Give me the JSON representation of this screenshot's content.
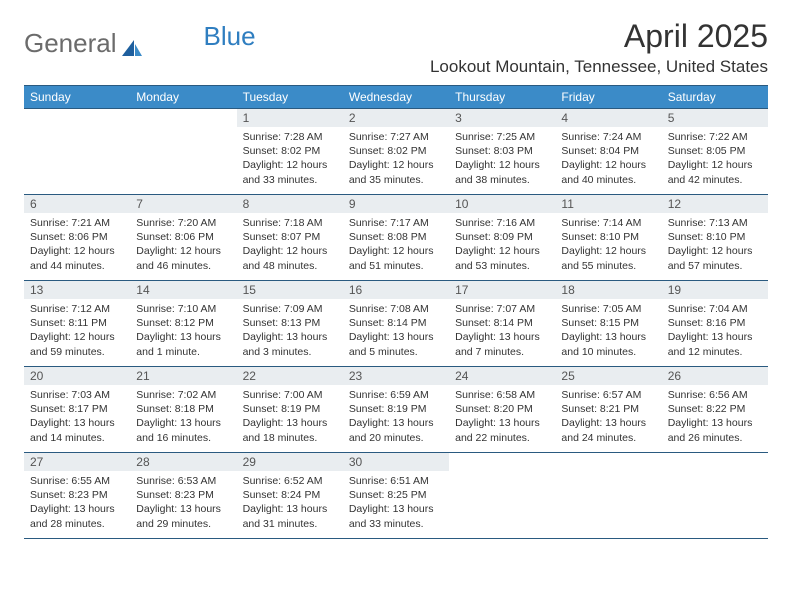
{
  "brand": {
    "part1": "General",
    "part2": "Blue"
  },
  "title": "April 2025",
  "location": "Lookout Mountain, Tennessee, United States",
  "style": {
    "header_bg": "#3b8bc8",
    "header_text": "#ffffff",
    "border_color": "#2a5a80",
    "daynum_bg": "#e9edf0",
    "body_bg": "#ffffff",
    "text_color": "#333333",
    "logo_gray": "#6b6b6b",
    "logo_blue": "#2f7ec0",
    "month_fontsize": 32,
    "location_fontsize": 17,
    "th_fontsize": 12,
    "cell_fontsize": 10.5
  },
  "weekdays": [
    "Sunday",
    "Monday",
    "Tuesday",
    "Wednesday",
    "Thursday",
    "Friday",
    "Saturday"
  ],
  "weeks": [
    [
      null,
      null,
      {
        "n": "1",
        "sr": "7:28 AM",
        "ss": "8:02 PM",
        "dl": "12 hours and 33 minutes."
      },
      {
        "n": "2",
        "sr": "7:27 AM",
        "ss": "8:02 PM",
        "dl": "12 hours and 35 minutes."
      },
      {
        "n": "3",
        "sr": "7:25 AM",
        "ss": "8:03 PM",
        "dl": "12 hours and 38 minutes."
      },
      {
        "n": "4",
        "sr": "7:24 AM",
        "ss": "8:04 PM",
        "dl": "12 hours and 40 minutes."
      },
      {
        "n": "5",
        "sr": "7:22 AM",
        "ss": "8:05 PM",
        "dl": "12 hours and 42 minutes."
      }
    ],
    [
      {
        "n": "6",
        "sr": "7:21 AM",
        "ss": "8:06 PM",
        "dl": "12 hours and 44 minutes."
      },
      {
        "n": "7",
        "sr": "7:20 AM",
        "ss": "8:06 PM",
        "dl": "12 hours and 46 minutes."
      },
      {
        "n": "8",
        "sr": "7:18 AM",
        "ss": "8:07 PM",
        "dl": "12 hours and 48 minutes."
      },
      {
        "n": "9",
        "sr": "7:17 AM",
        "ss": "8:08 PM",
        "dl": "12 hours and 51 minutes."
      },
      {
        "n": "10",
        "sr": "7:16 AM",
        "ss": "8:09 PM",
        "dl": "12 hours and 53 minutes."
      },
      {
        "n": "11",
        "sr": "7:14 AM",
        "ss": "8:10 PM",
        "dl": "12 hours and 55 minutes."
      },
      {
        "n": "12",
        "sr": "7:13 AM",
        "ss": "8:10 PM",
        "dl": "12 hours and 57 minutes."
      }
    ],
    [
      {
        "n": "13",
        "sr": "7:12 AM",
        "ss": "8:11 PM",
        "dl": "12 hours and 59 minutes."
      },
      {
        "n": "14",
        "sr": "7:10 AM",
        "ss": "8:12 PM",
        "dl": "13 hours and 1 minute."
      },
      {
        "n": "15",
        "sr": "7:09 AM",
        "ss": "8:13 PM",
        "dl": "13 hours and 3 minutes."
      },
      {
        "n": "16",
        "sr": "7:08 AM",
        "ss": "8:14 PM",
        "dl": "13 hours and 5 minutes."
      },
      {
        "n": "17",
        "sr": "7:07 AM",
        "ss": "8:14 PM",
        "dl": "13 hours and 7 minutes."
      },
      {
        "n": "18",
        "sr": "7:05 AM",
        "ss": "8:15 PM",
        "dl": "13 hours and 10 minutes."
      },
      {
        "n": "19",
        "sr": "7:04 AM",
        "ss": "8:16 PM",
        "dl": "13 hours and 12 minutes."
      }
    ],
    [
      {
        "n": "20",
        "sr": "7:03 AM",
        "ss": "8:17 PM",
        "dl": "13 hours and 14 minutes."
      },
      {
        "n": "21",
        "sr": "7:02 AM",
        "ss": "8:18 PM",
        "dl": "13 hours and 16 minutes."
      },
      {
        "n": "22",
        "sr": "7:00 AM",
        "ss": "8:19 PM",
        "dl": "13 hours and 18 minutes."
      },
      {
        "n": "23",
        "sr": "6:59 AM",
        "ss": "8:19 PM",
        "dl": "13 hours and 20 minutes."
      },
      {
        "n": "24",
        "sr": "6:58 AM",
        "ss": "8:20 PM",
        "dl": "13 hours and 22 minutes."
      },
      {
        "n": "25",
        "sr": "6:57 AM",
        "ss": "8:21 PM",
        "dl": "13 hours and 24 minutes."
      },
      {
        "n": "26",
        "sr": "6:56 AM",
        "ss": "8:22 PM",
        "dl": "13 hours and 26 minutes."
      }
    ],
    [
      {
        "n": "27",
        "sr": "6:55 AM",
        "ss": "8:23 PM",
        "dl": "13 hours and 28 minutes."
      },
      {
        "n": "28",
        "sr": "6:53 AM",
        "ss": "8:23 PM",
        "dl": "13 hours and 29 minutes."
      },
      {
        "n": "29",
        "sr": "6:52 AM",
        "ss": "8:24 PM",
        "dl": "13 hours and 31 minutes."
      },
      {
        "n": "30",
        "sr": "6:51 AM",
        "ss": "8:25 PM",
        "dl": "13 hours and 33 minutes."
      },
      null,
      null,
      null
    ]
  ],
  "labels": {
    "sunrise": "Sunrise: ",
    "sunset": "Sunset: ",
    "daylight": "Daylight: "
  }
}
